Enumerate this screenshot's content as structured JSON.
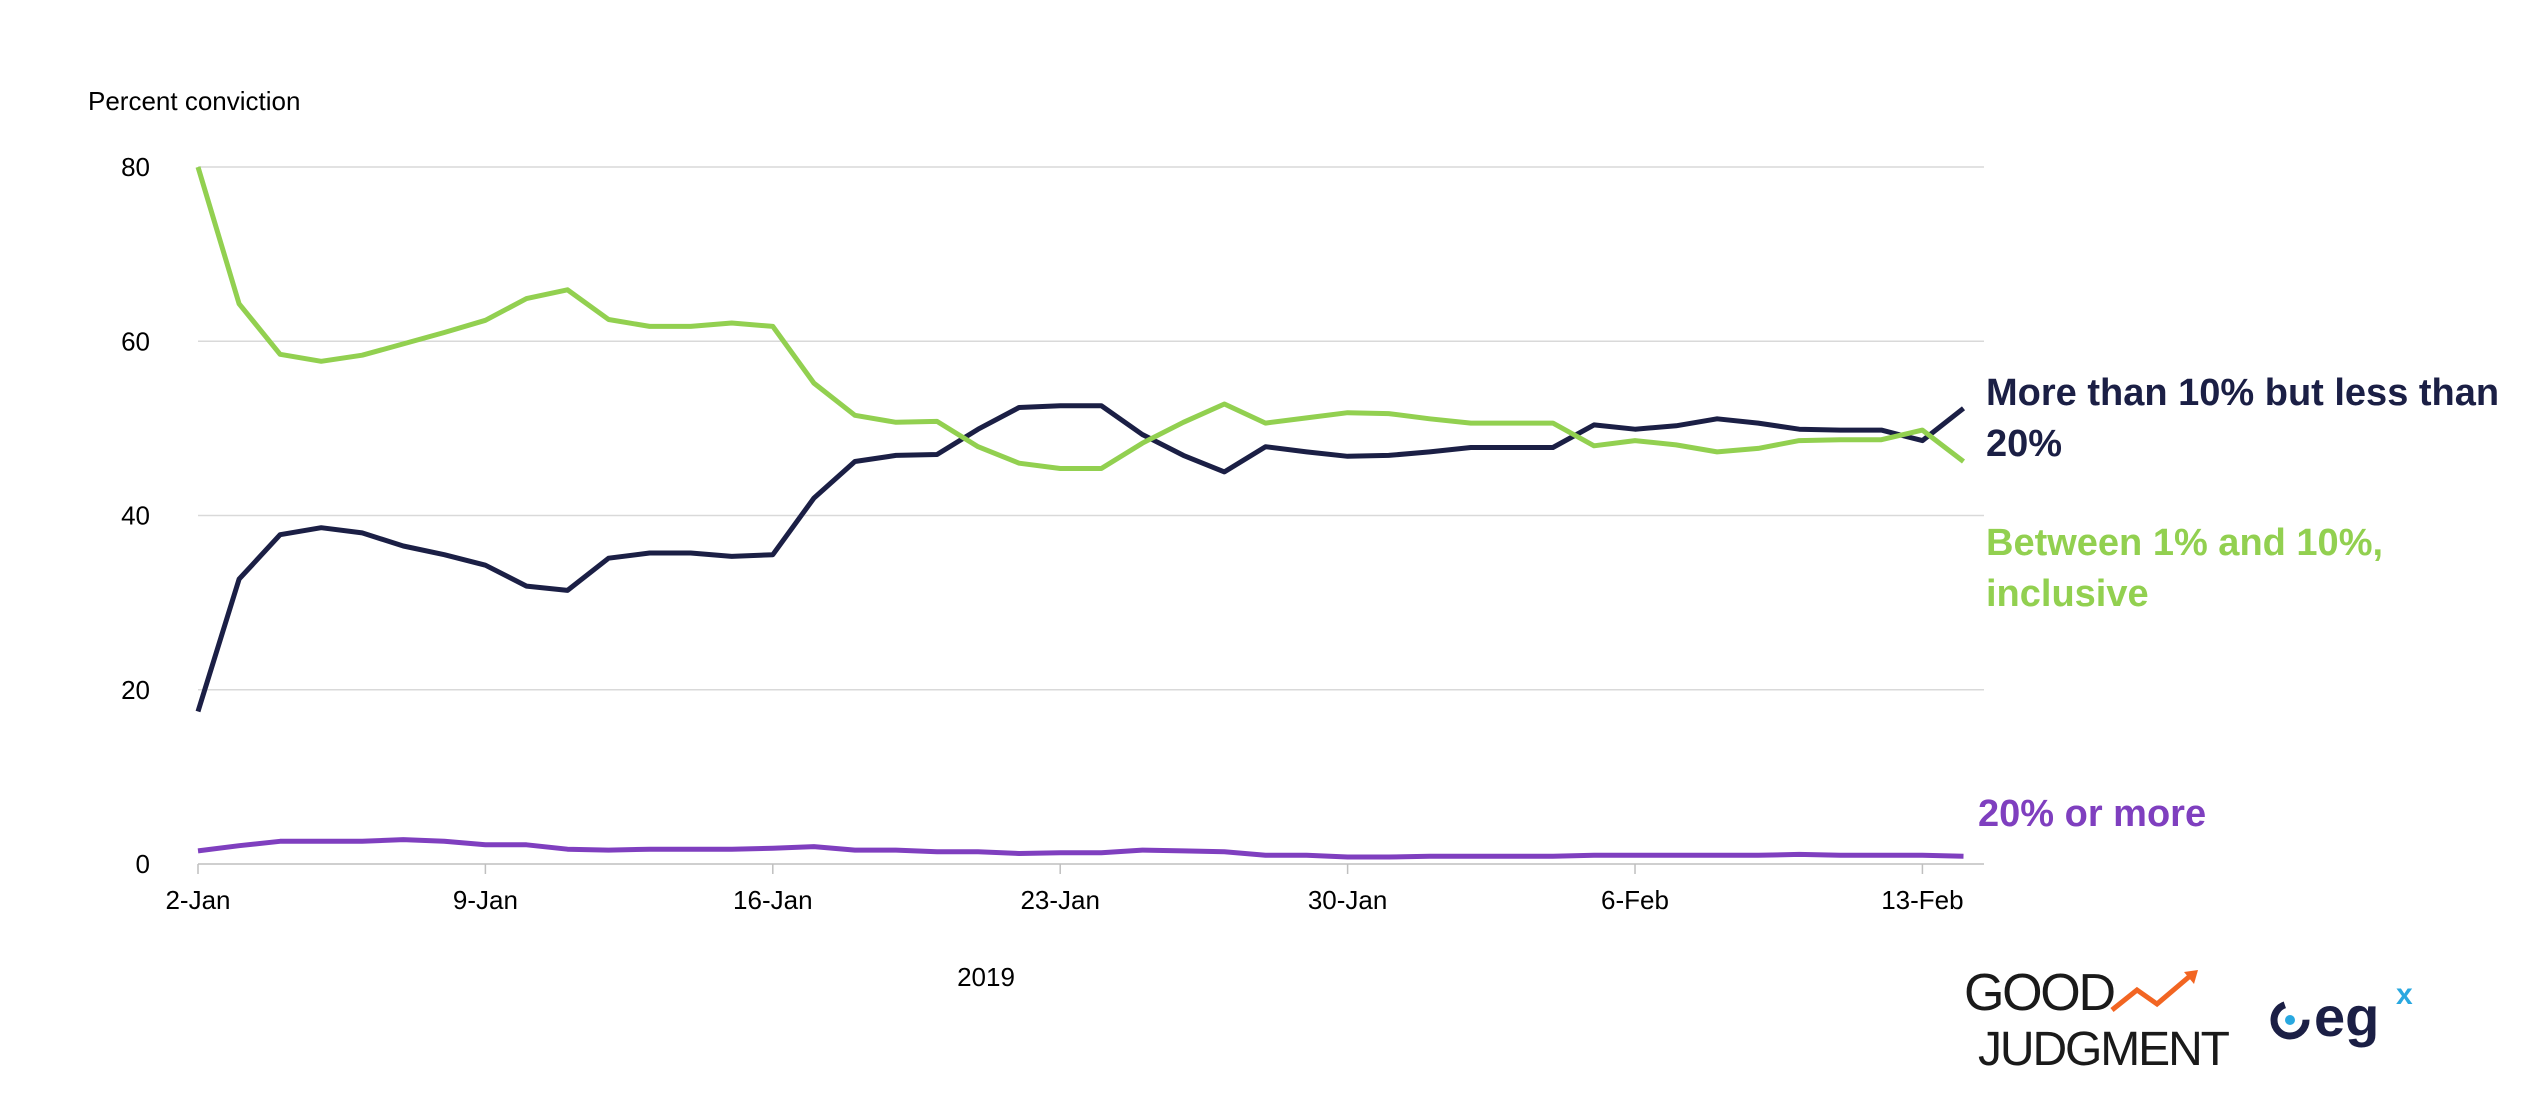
{
  "chart_data": {
    "type": "line",
    "ylabel": "Percent conviction",
    "xlabel": "2019",
    "ylim": [
      0,
      80
    ],
    "yticks": [
      "0",
      "20",
      "40",
      "60",
      "80"
    ],
    "xticks": [
      {
        "label": "2-Jan",
        "day": 0
      },
      {
        "label": "9-Jan",
        "day": 7
      },
      {
        "label": "16-Jan",
        "day": 14
      },
      {
        "label": "23-Jan",
        "day": 21
      },
      {
        "label": "30-Jan",
        "day": 28
      },
      {
        "label": "6-Feb",
        "day": 35
      },
      {
        "label": "13-Feb",
        "day": 42
      }
    ],
    "xlim": [
      0,
      43.5
    ],
    "grid": true,
    "series": [
      {
        "name": "More than 10% but less than 20%",
        "color": "#1b1f45",
        "x": [
          0,
          1,
          2,
          3,
          4,
          5,
          6,
          7,
          8,
          9,
          10,
          11,
          12,
          13,
          14,
          15,
          16,
          17,
          18,
          19,
          20,
          21,
          22,
          23,
          24,
          25,
          26,
          27,
          28,
          29,
          30,
          31,
          32,
          33,
          34,
          35,
          36,
          37,
          38,
          39,
          40,
          41,
          42,
          43
        ],
        "values": [
          17.5,
          32.7,
          37.8,
          38.6,
          38.0,
          36.5,
          35.5,
          34.3,
          31.9,
          31.4,
          35.1,
          35.7,
          35.7,
          35.3,
          35.5,
          42.0,
          46.2,
          46.9,
          47.0,
          49.9,
          52.4,
          52.6,
          52.6,
          49.3,
          46.9,
          45.0,
          47.9,
          47.3,
          46.8,
          46.9,
          47.3,
          47.8,
          47.8,
          47.8,
          50.4,
          49.9,
          50.3,
          51.1,
          50.6,
          49.9,
          49.8,
          49.8,
          48.6,
          52.3
        ]
      },
      {
        "name": "Between 1% and 10%, inclusive",
        "color": "#92d050",
        "x": [
          0,
          1,
          2,
          3,
          4,
          5,
          6,
          7,
          8,
          9,
          10,
          11,
          12,
          13,
          14,
          15,
          16,
          17,
          18,
          19,
          20,
          21,
          22,
          23,
          24,
          25,
          26,
          27,
          28,
          29,
          30,
          31,
          32,
          33,
          34,
          35,
          36,
          37,
          38,
          39,
          40,
          41,
          42,
          43
        ],
        "values": [
          80.0,
          64.3,
          58.5,
          57.7,
          58.4,
          59.7,
          61.0,
          62.4,
          64.9,
          65.9,
          62.5,
          61.7,
          61.7,
          62.1,
          61.7,
          55.2,
          51.5,
          50.7,
          50.8,
          47.9,
          46.0,
          45.4,
          45.4,
          48.3,
          50.7,
          52.8,
          50.6,
          51.2,
          51.8,
          51.7,
          51.1,
          50.6,
          50.6,
          50.6,
          48.0,
          48.6,
          48.1,
          47.3,
          47.7,
          48.6,
          48.7,
          48.7,
          49.8,
          46.2
        ]
      },
      {
        "name": "20% or more",
        "color": "#7f3fbf",
        "x": [
          0,
          1,
          2,
          3,
          4,
          5,
          6,
          7,
          8,
          9,
          10,
          11,
          12,
          13,
          14,
          15,
          16,
          17,
          18,
          19,
          20,
          21,
          22,
          23,
          24,
          25,
          26,
          27,
          28,
          29,
          30,
          31,
          32,
          33,
          34,
          35,
          36,
          37,
          38,
          39,
          40,
          41,
          42,
          43
        ],
        "values": [
          1.5,
          2.1,
          2.6,
          2.6,
          2.6,
          2.8,
          2.6,
          2.2,
          2.2,
          1.7,
          1.6,
          1.7,
          1.7,
          1.7,
          1.8,
          2.0,
          1.6,
          1.6,
          1.4,
          1.4,
          1.2,
          1.3,
          1.3,
          1.6,
          1.5,
          1.4,
          1.0,
          1.0,
          0.8,
          0.8,
          0.9,
          0.9,
          0.9,
          0.9,
          1.0,
          1.0,
          1.0,
          1.0,
          1.0,
          1.1,
          1.0,
          1.0,
          1.0,
          0.9
        ]
      }
    ]
  },
  "logos": {
    "good_judgment": {
      "line1": "GOOD",
      "line2": "JUDGMENT",
      "accent": "#f26522",
      "color": "#1a1a1a"
    },
    "egx": {
      "text": "eg",
      "sup": "x",
      "color": "#1b1f45",
      "accent": "#29a8e0"
    }
  }
}
